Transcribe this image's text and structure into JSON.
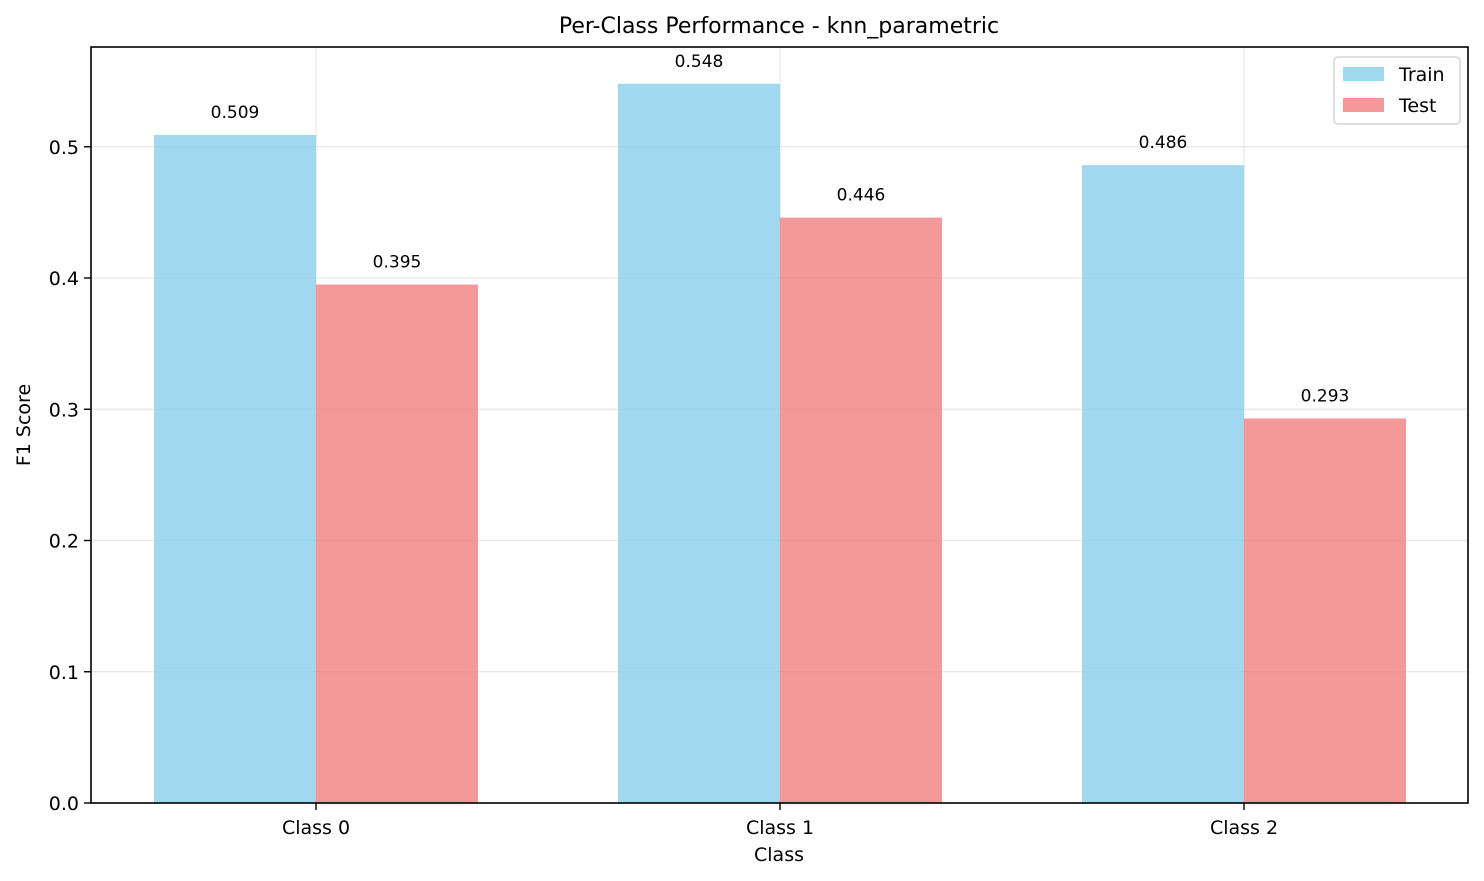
{
  "chart_data": {
    "type": "bar",
    "title": "Per-Class Performance - knn_parametric",
    "xlabel": "Class",
    "ylabel": "F1 Score",
    "categories": [
      "Class 0",
      "Class 1",
      "Class 2"
    ],
    "series": [
      {
        "name": "Train",
        "values": [
          0.509,
          0.548,
          0.486
        ],
        "labels": [
          "0.509",
          "0.548",
          "0.486"
        ],
        "color": "#87CEEB"
      },
      {
        "name": "Test",
        "values": [
          0.395,
          0.446,
          0.293
        ],
        "labels": [
          "0.395",
          "0.446",
          "0.293"
        ],
        "color": "#F08080"
      }
    ],
    "ylim": [
      0,
      0.576
    ],
    "yticks": [
      0.0,
      0.1,
      0.2,
      0.3,
      0.4,
      0.5
    ],
    "ytick_labels": [
      "0.0",
      "0.1",
      "0.2",
      "0.3",
      "0.4",
      "0.5"
    ],
    "grid": true,
    "legend_position": "top-right"
  }
}
